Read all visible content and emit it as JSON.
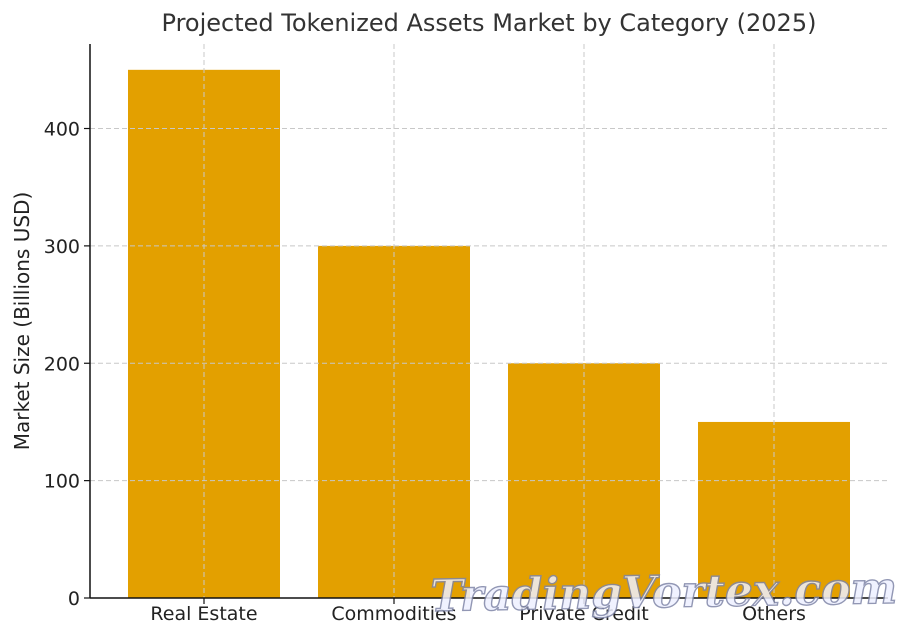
{
  "chart_data": {
    "type": "bar",
    "title": "Projected Tokenized Assets Market by Category (2025)",
    "xlabel": "",
    "ylabel": "Market Size (Billions USD)",
    "categories": [
      "Real Estate",
      "Commodities",
      "Private Credit",
      "Others"
    ],
    "values": [
      450,
      300,
      200,
      150
    ],
    "ylim": [
      0,
      472
    ],
    "yticks": [
      0,
      100,
      200,
      300,
      400
    ],
    "grid": true,
    "bar_color": "#E3A000"
  },
  "watermark": {
    "text": "TradingVortex.com"
  }
}
